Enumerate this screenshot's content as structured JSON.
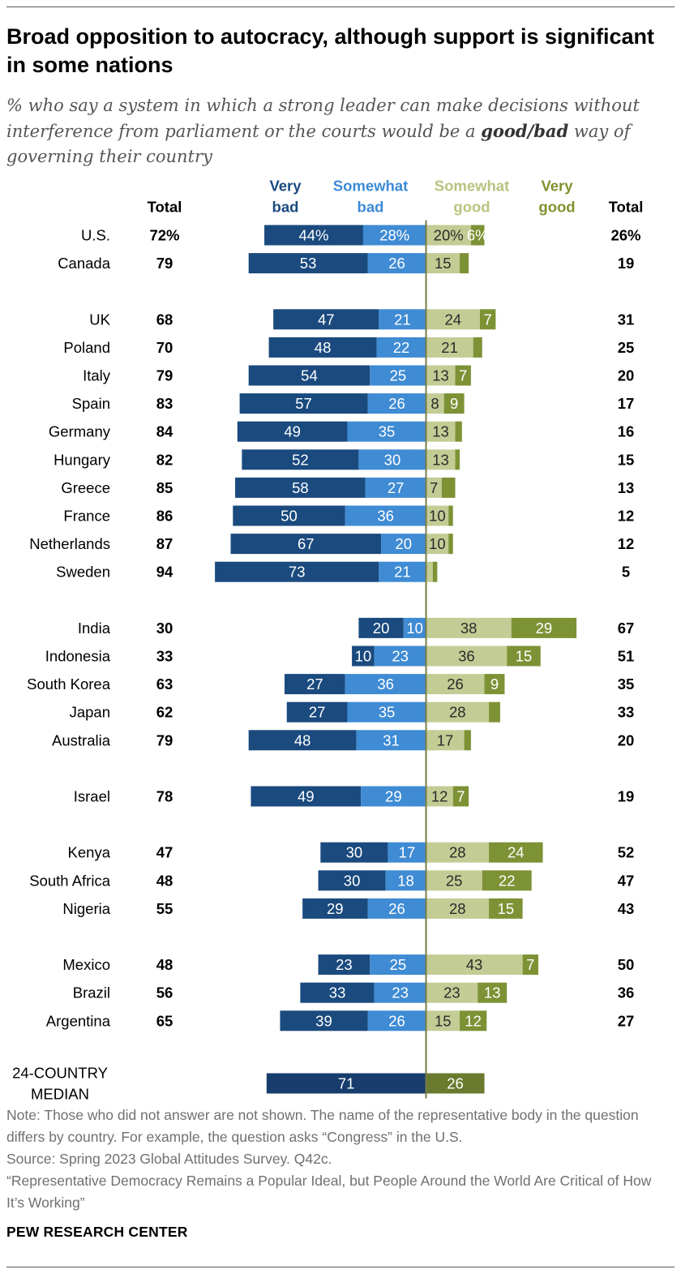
{
  "title": "Broad opposition to autocracy, although support is significant in some nations",
  "subtitle": {
    "part1": "% who say a system in which a strong leader can make decisions without interference from parliament or the courts would be a ",
    "emphasis": "good/bad",
    "part2": " way of governing their country"
  },
  "colors": {
    "very_bad": "#1a4a7e",
    "somewhat_bad": "#3f8bd4",
    "somewhat_good": "#c3cc94",
    "very_good": "#7d9235",
    "median_bad": "#163d6b",
    "median_good": "#6a7b2f",
    "axis": "#777c47",
    "header_very_bad": "#1b4a80",
    "header_somewhat_bad": "#3d8ad6",
    "header_somewhat_good": "#b9c380",
    "header_very_good": "#7f9230"
  },
  "chart_data": {
    "type": "diverging-stacked-bar",
    "headers": {
      "total_left": "Total",
      "very_bad": [
        "Very",
        "bad"
      ],
      "somewhat_bad": [
        "Somewhat",
        "bad"
      ],
      "somewhat_good": [
        "Somewhat",
        "good"
      ],
      "very_good": [
        "Very",
        "good"
      ],
      "total_right": "Total"
    },
    "groups": [
      [
        {
          "country": "U.S.",
          "total_bad": "72%",
          "very_bad": 44,
          "somewhat_bad": 28,
          "somewhat_good": 20,
          "very_good": 6,
          "total_good": "26%",
          "labels": [
            "44%",
            "28%",
            "20%",
            "6%"
          ]
        },
        {
          "country": "Canada",
          "total_bad": "79",
          "very_bad": 53,
          "somewhat_bad": 26,
          "somewhat_good": 15,
          "very_good": 4,
          "total_good": "19",
          "labels": [
            "53",
            "26",
            "15",
            ""
          ]
        }
      ],
      [
        {
          "country": "UK",
          "total_bad": "68",
          "very_bad": 47,
          "somewhat_bad": 21,
          "somewhat_good": 24,
          "very_good": 7,
          "total_good": "31",
          "labels": [
            "47",
            "21",
            "24",
            "7"
          ]
        },
        {
          "country": "Poland",
          "total_bad": "70",
          "very_bad": 48,
          "somewhat_bad": 22,
          "somewhat_good": 21,
          "very_good": 4,
          "total_good": "25",
          "labels": [
            "48",
            "22",
            "21",
            ""
          ]
        },
        {
          "country": "Italy",
          "total_bad": "79",
          "very_bad": 54,
          "somewhat_bad": 25,
          "somewhat_good": 13,
          "very_good": 7,
          "total_good": "20",
          "labels": [
            "54",
            "25",
            "13",
            "7"
          ]
        },
        {
          "country": "Spain",
          "total_bad": "83",
          "very_bad": 57,
          "somewhat_bad": 26,
          "somewhat_good": 8,
          "very_good": 9,
          "total_good": "17",
          "labels": [
            "57",
            "26",
            "8",
            "9"
          ]
        },
        {
          "country": "Germany",
          "total_bad": "84",
          "very_bad": 49,
          "somewhat_bad": 35,
          "somewhat_good": 13,
          "very_good": 3,
          "total_good": "16",
          "labels": [
            "49",
            "35",
            "13",
            ""
          ]
        },
        {
          "country": "Hungary",
          "total_bad": "82",
          "very_bad": 52,
          "somewhat_bad": 30,
          "somewhat_good": 13,
          "very_good": 2,
          "total_good": "15",
          "labels": [
            "52",
            "30",
            "13",
            ""
          ]
        },
        {
          "country": "Greece",
          "total_bad": "85",
          "very_bad": 58,
          "somewhat_bad": 27,
          "somewhat_good": 7,
          "very_good": 6,
          "total_good": "13",
          "labels": [
            "58",
            "27",
            "7",
            ""
          ]
        },
        {
          "country": "France",
          "total_bad": "86",
          "very_bad": 50,
          "somewhat_bad": 36,
          "somewhat_good": 10,
          "very_good": 2,
          "total_good": "12",
          "labels": [
            "50",
            "36",
            "10",
            ""
          ]
        },
        {
          "country": "Netherlands",
          "total_bad": "87",
          "very_bad": 67,
          "somewhat_bad": 20,
          "somewhat_good": 10,
          "very_good": 2,
          "total_good": "12",
          "labels": [
            "67",
            "20",
            "10",
            ""
          ]
        },
        {
          "country": "Sweden",
          "total_bad": "94",
          "very_bad": 73,
          "somewhat_bad": 21,
          "somewhat_good": 3,
          "very_good": 2,
          "total_good": "5",
          "labels": [
            "73",
            "21",
            "",
            ""
          ]
        }
      ],
      [
        {
          "country": "India",
          "total_bad": "30",
          "very_bad": 20,
          "somewhat_bad": 10,
          "somewhat_good": 38,
          "very_good": 29,
          "total_good": "67",
          "labels": [
            "20",
            "10",
            "38",
            "29"
          ]
        },
        {
          "country": "Indonesia",
          "total_bad": "33",
          "very_bad": 10,
          "somewhat_bad": 23,
          "somewhat_good": 36,
          "very_good": 15,
          "total_good": "51",
          "labels": [
            "10",
            "23",
            "36",
            "15"
          ]
        },
        {
          "country": "South Korea",
          "total_bad": "63",
          "very_bad": 27,
          "somewhat_bad": 36,
          "somewhat_good": 26,
          "very_good": 9,
          "total_good": "35",
          "labels": [
            "27",
            "36",
            "26",
            "9"
          ]
        },
        {
          "country": "Japan",
          "total_bad": "62",
          "very_bad": 27,
          "somewhat_bad": 35,
          "somewhat_good": 28,
          "very_good": 5,
          "total_good": "33",
          "labels": [
            "27",
            "35",
            "28",
            ""
          ]
        },
        {
          "country": "Australia",
          "total_bad": "79",
          "very_bad": 48,
          "somewhat_bad": 31,
          "somewhat_good": 17,
          "very_good": 3,
          "total_good": "20",
          "labels": [
            "48",
            "31",
            "17",
            ""
          ]
        }
      ],
      [
        {
          "country": "Israel",
          "total_bad": "78",
          "very_bad": 49,
          "somewhat_bad": 29,
          "somewhat_good": 12,
          "very_good": 7,
          "total_good": "19",
          "labels": [
            "49",
            "29",
            "12",
            "7"
          ]
        }
      ],
      [
        {
          "country": "Kenya",
          "total_bad": "47",
          "very_bad": 30,
          "somewhat_bad": 17,
          "somewhat_good": 28,
          "very_good": 24,
          "total_good": "52",
          "labels": [
            "30",
            "17",
            "28",
            "24"
          ]
        },
        {
          "country": "South Africa",
          "total_bad": "48",
          "very_bad": 30,
          "somewhat_bad": 18,
          "somewhat_good": 25,
          "very_good": 22,
          "total_good": "47",
          "labels": [
            "30",
            "18",
            "25",
            "22"
          ]
        },
        {
          "country": "Nigeria",
          "total_bad": "55",
          "very_bad": 29,
          "somewhat_bad": 26,
          "somewhat_good": 28,
          "very_good": 15,
          "total_good": "43",
          "labels": [
            "29",
            "26",
            "28",
            "15"
          ]
        }
      ],
      [
        {
          "country": "Mexico",
          "total_bad": "48",
          "very_bad": 23,
          "somewhat_bad": 25,
          "somewhat_good": 43,
          "very_good": 7,
          "total_good": "50",
          "labels": [
            "23",
            "25",
            "43",
            "7"
          ]
        },
        {
          "country": "Brazil",
          "total_bad": "56",
          "very_bad": 33,
          "somewhat_bad": 23,
          "somewhat_good": 23,
          "very_good": 13,
          "total_good": "36",
          "labels": [
            "33",
            "23",
            "23",
            "13"
          ]
        },
        {
          "country": "Argentina",
          "total_bad": "65",
          "very_bad": 39,
          "somewhat_bad": 26,
          "somewhat_good": 15,
          "very_good": 12,
          "total_good": "27",
          "labels": [
            "39",
            "26",
            "15",
            "12"
          ]
        }
      ]
    ],
    "median": {
      "label": [
        "24-COUNTRY",
        "MEDIAN"
      ],
      "bad": 71,
      "good": 26,
      "labels": [
        "71",
        "26"
      ]
    }
  },
  "notes": {
    "note": "Note: Those who did not answer are not shown. The name of the representative body in the question differs by country. For example, the question asks “Congress” in the U.S.",
    "source": "Source: Spring 2023 Global Attitudes Survey. Q42c.",
    "report": "“Representative Democracy Remains a Popular Ideal, but People Around the World Are Critical of How It’s Working”"
  },
  "brand": "PEW RESEARCH CENTER"
}
